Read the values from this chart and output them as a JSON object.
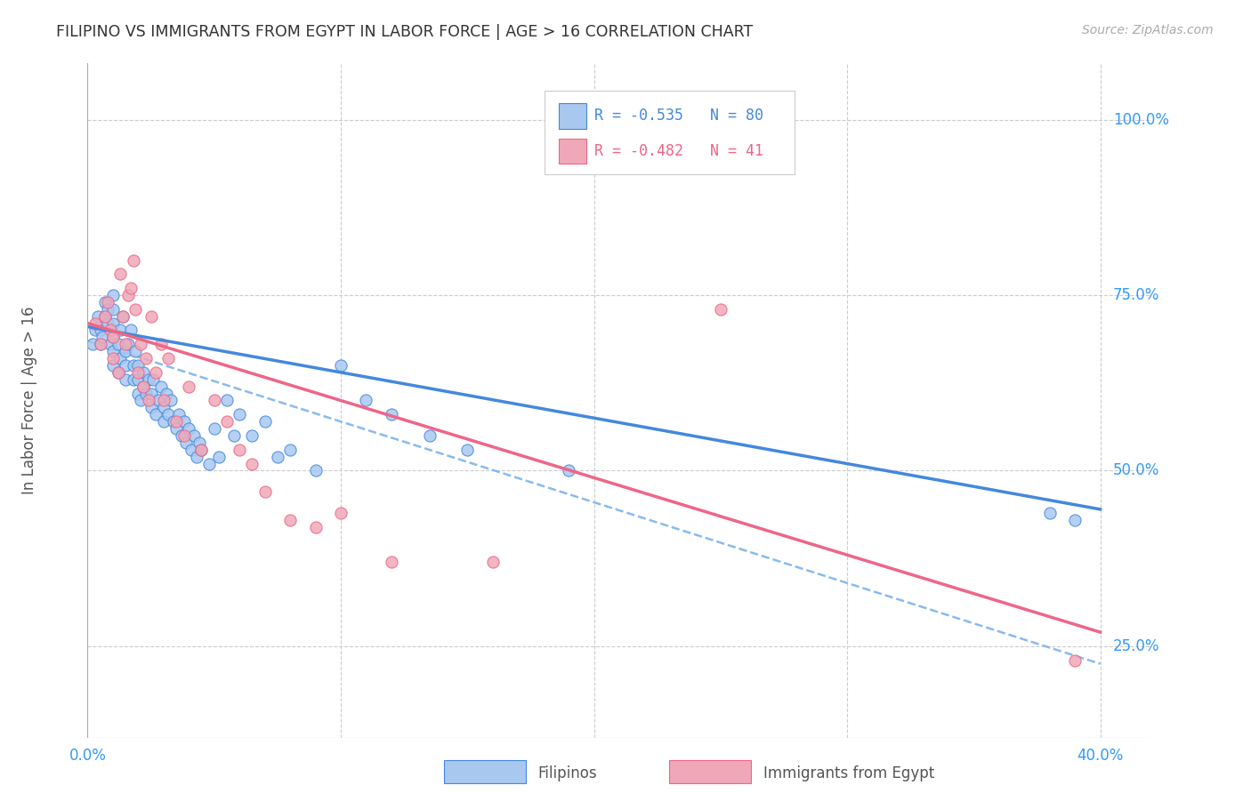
{
  "title": "FILIPINO VS IMMIGRANTS FROM EGYPT IN LABOR FORCE | AGE > 16 CORRELATION CHART",
  "source": "Source: ZipAtlas.com",
  "ylabel": "In Labor Force | Age > 16",
  "ytick_labels": [
    "100.0%",
    "75.0%",
    "50.0%",
    "25.0%"
  ],
  "ytick_values": [
    1.0,
    0.75,
    0.5,
    0.25
  ],
  "xtick_labels": [
    "0.0%",
    "40.0%"
  ],
  "xlim": [
    0.0,
    0.42
  ],
  "ylim": [
    0.12,
    1.08
  ],
  "legend_r_filipino": "R = -0.535",
  "legend_n_filipino": "N = 80",
  "legend_r_egypt": "R = -0.482",
  "legend_n_egypt": "N = 41",
  "filipino_color": "#a8c8f0",
  "egypt_color": "#f0a8b8",
  "line_filipino_color": "#4488dd",
  "line_egypt_color": "#ee6688",
  "line_dashed_color": "#88bbee",
  "background_color": "#ffffff",
  "grid_color": "#cccccc",
  "title_color": "#333333",
  "axis_label_color": "#3399ff",
  "filipino_scatter_x": [
    0.002,
    0.003,
    0.004,
    0.005,
    0.005,
    0.006,
    0.007,
    0.007,
    0.008,
    0.008,
    0.009,
    0.01,
    0.01,
    0.01,
    0.01,
    0.01,
    0.01,
    0.012,
    0.012,
    0.013,
    0.013,
    0.014,
    0.015,
    0.015,
    0.015,
    0.016,
    0.017,
    0.018,
    0.018,
    0.019,
    0.02,
    0.02,
    0.02,
    0.021,
    0.022,
    0.022,
    0.023,
    0.024,
    0.025,
    0.025,
    0.026,
    0.027,
    0.028,
    0.029,
    0.03,
    0.03,
    0.031,
    0.032,
    0.033,
    0.034,
    0.035,
    0.036,
    0.037,
    0.038,
    0.039,
    0.04,
    0.041,
    0.042,
    0.043,
    0.044,
    0.045,
    0.048,
    0.05,
    0.052,
    0.055,
    0.058,
    0.06,
    0.065,
    0.07,
    0.075,
    0.08,
    0.09,
    0.1,
    0.11,
    0.12,
    0.135,
    0.15,
    0.19,
    0.38,
    0.39
  ],
  "filipino_scatter_y": [
    0.68,
    0.7,
    0.72,
    0.68,
    0.7,
    0.69,
    0.72,
    0.74,
    0.71,
    0.73,
    0.68,
    0.65,
    0.67,
    0.69,
    0.71,
    0.73,
    0.75,
    0.64,
    0.68,
    0.66,
    0.7,
    0.72,
    0.63,
    0.65,
    0.67,
    0.68,
    0.7,
    0.63,
    0.65,
    0.67,
    0.61,
    0.63,
    0.65,
    0.6,
    0.62,
    0.64,
    0.61,
    0.63,
    0.59,
    0.61,
    0.63,
    0.58,
    0.6,
    0.62,
    0.57,
    0.59,
    0.61,
    0.58,
    0.6,
    0.57,
    0.56,
    0.58,
    0.55,
    0.57,
    0.54,
    0.56,
    0.53,
    0.55,
    0.52,
    0.54,
    0.53,
    0.51,
    0.56,
    0.52,
    0.6,
    0.55,
    0.58,
    0.55,
    0.57,
    0.52,
    0.53,
    0.5,
    0.65,
    0.6,
    0.58,
    0.55,
    0.53,
    0.5,
    0.44,
    0.43
  ],
  "egypt_scatter_x": [
    0.003,
    0.005,
    0.007,
    0.008,
    0.009,
    0.01,
    0.01,
    0.012,
    0.013,
    0.014,
    0.015,
    0.016,
    0.017,
    0.018,
    0.019,
    0.02,
    0.021,
    0.022,
    0.023,
    0.024,
    0.025,
    0.027,
    0.029,
    0.03,
    0.032,
    0.035,
    0.038,
    0.04,
    0.045,
    0.05,
    0.055,
    0.06,
    0.065,
    0.07,
    0.08,
    0.09,
    0.1,
    0.12,
    0.16,
    0.25,
    0.39
  ],
  "egypt_scatter_y": [
    0.71,
    0.68,
    0.72,
    0.74,
    0.7,
    0.66,
    0.69,
    0.64,
    0.78,
    0.72,
    0.68,
    0.75,
    0.76,
    0.8,
    0.73,
    0.64,
    0.68,
    0.62,
    0.66,
    0.6,
    0.72,
    0.64,
    0.68,
    0.6,
    0.66,
    0.57,
    0.55,
    0.62,
    0.53,
    0.6,
    0.57,
    0.53,
    0.51,
    0.47,
    0.43,
    0.42,
    0.44,
    0.37,
    0.37,
    0.73,
    0.23
  ],
  "filipino_trendline_x": [
    0.0,
    0.4
  ],
  "filipino_trendline_y": [
    0.705,
    0.445
  ],
  "egypt_trendline_x": [
    0.0,
    0.4
  ],
  "egypt_trendline_y": [
    0.71,
    0.27
  ],
  "dashed_trendline_x": [
    0.0,
    0.4
  ],
  "dashed_trendline_y": [
    0.685,
    0.225
  ]
}
